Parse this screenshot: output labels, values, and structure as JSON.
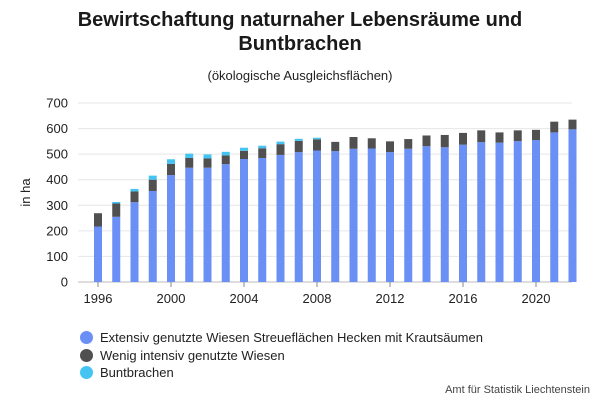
{
  "chart_data": {
    "type": "bar",
    "stacked": true,
    "title": "Bewirtschaftung naturnaher Lebensräume und Buntbrachen",
    "title_lines": [
      "Bewirtschaftung naturnaher Lebensräume und",
      "Buntbrachen"
    ],
    "subtitle": "(ökologische Ausgleichsflächen)",
    "ylabel": "in ha",
    "ylim": [
      0,
      700
    ],
    "yticks": [
      0,
      100,
      200,
      300,
      400,
      500,
      600,
      700
    ],
    "xticks": [
      1996,
      2000,
      2004,
      2008,
      2012,
      2016,
      2020
    ],
    "grid": "horizontal",
    "legend_position": "bottom-left",
    "categories": [
      1996,
      1997,
      1998,
      1999,
      2000,
      2001,
      2002,
      2003,
      2004,
      2005,
      2006,
      2007,
      2008,
      2009,
      2010,
      2011,
      2012,
      2013,
      2014,
      2015,
      2016,
      2017,
      2018,
      2019,
      2020,
      2021,
      2022
    ],
    "series": [
      {
        "name": "Extensiv genutzte Wiesen Streueflächen Hecken mit Krautsäumen",
        "color": "#6a8ff5",
        "values": [
          217,
          255,
          312,
          356,
          418,
          447,
          447,
          461,
          481,
          485,
          497,
          508,
          514,
          512,
          521,
          522,
          508,
          521,
          531,
          527,
          537,
          547,
          545,
          551,
          555,
          585,
          597
        ]
      },
      {
        "name": "Wenig intensiv genutzte Wiesen",
        "color": "#505050",
        "values": [
          52,
          52,
          42,
          44,
          44,
          38,
          36,
          34,
          32,
          38,
          42,
          44,
          44,
          36,
          46,
          40,
          42,
          38,
          42,
          48,
          46,
          46,
          40,
          42,
          40,
          42,
          38
        ]
      },
      {
        "name": "Buntbrachen",
        "color": "#45c4f4",
        "values": [
          0,
          6,
          10,
          16,
          18,
          17,
          16,
          14,
          12,
          10,
          10,
          8,
          6,
          0,
          0,
          0,
          0,
          0,
          0,
          0,
          0,
          0,
          0,
          0,
          0,
          0,
          0
        ]
      }
    ]
  },
  "credit": "Amt für Statistik Liechtenstein"
}
